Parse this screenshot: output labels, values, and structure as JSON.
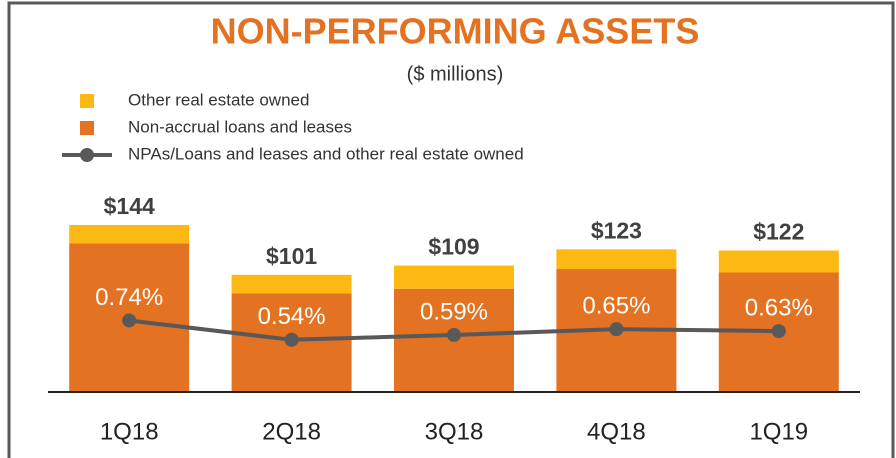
{
  "chart_data": {
    "type": "stacked-bar-line",
    "title": "NON-PERFORMING ASSETS",
    "subtitle": "($ millions)",
    "categories": [
      "1Q18",
      "2Q18",
      "3Q18",
      "4Q18",
      "1Q19"
    ],
    "series": [
      {
        "name": "Non-accrual loans and leases",
        "color": "#e37222",
        "values": [
          128,
          85,
          89,
          106,
          103
        ]
      },
      {
        "name": "Other real estate owned",
        "color": "#fdb913",
        "values": [
          16,
          16,
          20,
          17,
          19
        ]
      },
      {
        "name": "NPAs/Loans and leases and other real estate owned",
        "color": "#595959",
        "axis": "y2",
        "values": [
          0.74,
          0.54,
          0.59,
          0.65,
          0.63
        ],
        "value_labels": [
          "0.74%",
          "0.54%",
          "0.59%",
          "0.65%",
          "0.63%"
        ]
      }
    ],
    "totals": [
      144,
      101,
      109,
      123,
      122
    ],
    "total_labels": [
      "$144",
      "$101",
      "$109",
      "$123",
      "$122"
    ],
    "ylim": [
      0,
      150
    ],
    "y2lim": [
      0,
      1.8
    ]
  }
}
